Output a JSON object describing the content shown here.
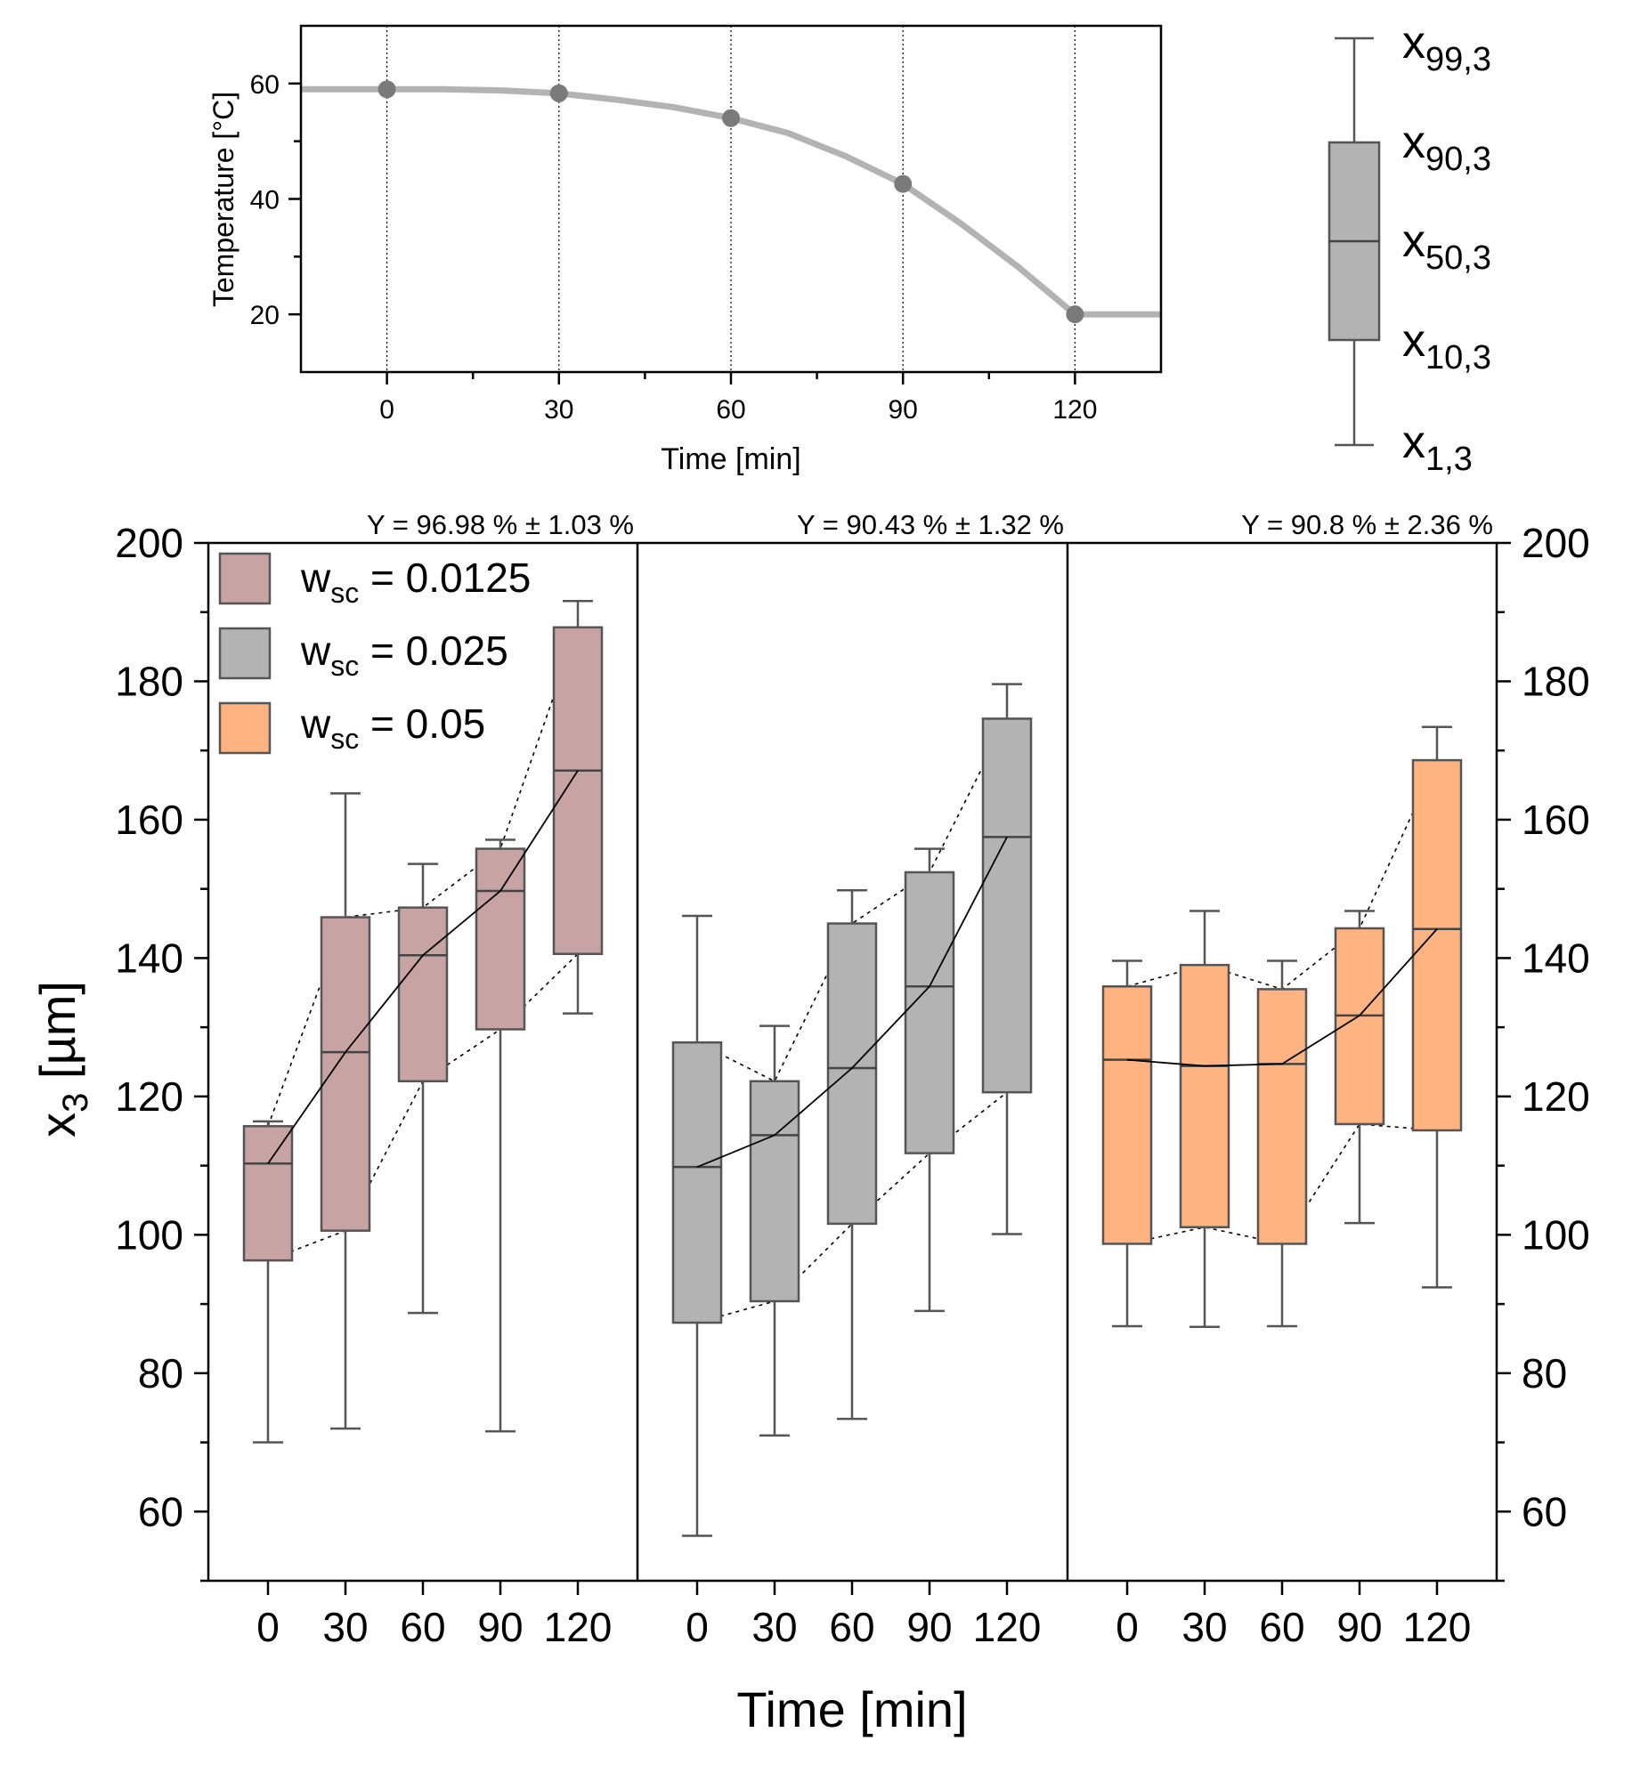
{
  "colors": {
    "panel1_fill": "#c7a3a3",
    "panel2_fill": "#b3b3b3",
    "panel3_fill": "#ffb380",
    "temp_line": "#b3b3b3",
    "temp_marker": "#7a7a7a",
    "box_edge": "#555555"
  },
  "chart_data": [
    {
      "type": "line",
      "id": "temperature-profile",
      "title": "",
      "xlabel": "Time [min]",
      "ylabel": "Temperature [°C]",
      "xlim": [
        -15,
        135
      ],
      "ylim": [
        10,
        70
      ],
      "x_ticks": [
        0,
        30,
        60,
        90,
        120
      ],
      "y_ticks": [
        20,
        40,
        60
      ],
      "grid": "vertical dotted at x ticks",
      "curve": {
        "x": [
          -15,
          0,
          10,
          20,
          30,
          40,
          50,
          60,
          70,
          80,
          90,
          100,
          110,
          120,
          135
        ],
        "y": [
          59,
          59,
          59,
          58.8,
          58.3,
          57.2,
          55.9,
          54.0,
          51.4,
          47.4,
          42.6,
          35.8,
          28.3,
          20,
          20
        ]
      },
      "markers": {
        "x": [
          0,
          30,
          60,
          90,
          120
        ],
        "y": [
          59,
          58.3,
          54,
          42.6,
          20
        ]
      }
    },
    {
      "type": "legend-box",
      "id": "boxplot-key",
      "labels": [
        {
          "base": "x",
          "sub": "99,3"
        },
        {
          "base": "x",
          "sub": "90,3"
        },
        {
          "base": "x",
          "sub": "50,3"
        },
        {
          "base": "x",
          "sub": "10,3"
        },
        {
          "base": "x",
          "sub": "1,3"
        }
      ]
    },
    {
      "type": "box",
      "id": "particle-size",
      "xlabel": "Time [min]",
      "ylabel": {
        "base": "x",
        "sub": "3",
        "rest": " [µm]"
      },
      "ylim": [
        50,
        200
      ],
      "y_ticks": [
        60,
        80,
        100,
        120,
        140,
        160,
        180,
        200
      ],
      "categories": [
        "0",
        "30",
        "60",
        "90",
        "120"
      ],
      "legend": [
        {
          "base": "w",
          "sub": "sc",
          "rest": " = 0.0125"
        },
        {
          "base": "w",
          "sub": "sc",
          "rest": " = 0.025"
        },
        {
          "base": "w",
          "sub": "sc",
          "rest": " = 0.05"
        }
      ],
      "panels": [
        {
          "name": "w_sc = 0.0125",
          "yield_label": "Y = 96.98 % ± 1.03 %",
          "boxes": [
            {
              "p1": 70,
              "p10": 96.3,
              "p50": 110.3,
              "p90": 115.7,
              "p99": 116.4
            },
            {
              "p1": 72,
              "p10": 100.6,
              "p50": 126.4,
              "p90": 145.9,
              "p99": 163.8
            },
            {
              "p1": 88.7,
              "p10": 122.2,
              "p50": 140.4,
              "p90": 147.3,
              "p99": 153.6
            },
            {
              "p1": 71.6,
              "p10": 129.7,
              "p50": 149.7,
              "p90": 155.8,
              "p99": 157.1
            },
            {
              "p1": 132,
              "p10": 140.6,
              "p50": 167.1,
              "p90": 187.8,
              "p99": 191.6
            }
          ]
        },
        {
          "name": "w_sc = 0.025",
          "yield_label": "Y = 90.43 % ± 1.32 %",
          "boxes": [
            {
              "p1": 56.5,
              "p10": 87.3,
              "p50": 109.8,
              "p90": 127.8,
              "p99": 146.1
            },
            {
              "p1": 71,
              "p10": 90.4,
              "p50": 114.4,
              "p90": 122.2,
              "p99": 130.2
            },
            {
              "p1": 73.4,
              "p10": 101.6,
              "p50": 124.1,
              "p90": 145,
              "p99": 149.8
            },
            {
              "p1": 89,
              "p10": 111.8,
              "p50": 135.9,
              "p90": 152.4,
              "p99": 155.8
            },
            {
              "p1": 100.1,
              "p10": 120.6,
              "p50": 157.5,
              "p90": 174.6,
              "p99": 179.6
            }
          ]
        },
        {
          "name": "w_sc = 0.05",
          "yield_label": "Y = 90.8 % ± 2.36 %",
          "boxes": [
            {
              "p1": 86.8,
              "p10": 98.7,
              "p50": 125.3,
              "p90": 135.9,
              "p99": 139.6
            },
            {
              "p1": 86.7,
              "p10": 101.1,
              "p50": 124.4,
              "p90": 139,
              "p99": 146.8
            },
            {
              "p1": 86.8,
              "p10": 98.7,
              "p50": 124.7,
              "p90": 135.5,
              "p99": 139.6
            },
            {
              "p1": 101.7,
              "p10": 116,
              "p50": 131.7,
              "p90": 144.3,
              "p99": 146.8
            },
            {
              "p1": 92.4,
              "p10": 115.1,
              "p50": 144.2,
              "p90": 168.6,
              "p99": 173.4
            }
          ]
        }
      ]
    }
  ]
}
